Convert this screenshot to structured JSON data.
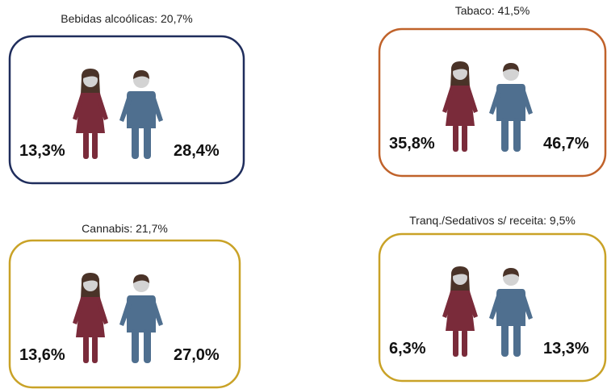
{
  "panels": [
    {
      "title": "Bebidas alcoólicas: 20,7%",
      "female": "13,3%",
      "male": "28,4%",
      "color": "#1f2d5c"
    },
    {
      "title": "Tabaco: 41,5%",
      "female": "35,8%",
      "male": "46,7%",
      "color": "#c0622a"
    },
    {
      "title": "Cannabis: 21,7%",
      "female": "13,6%",
      "male": "27,0%",
      "color": "#c9a227"
    },
    {
      "title": "Tranq./Sedativos s/ receita: 9,5%",
      "female": "6,3%",
      "male": "13,3%",
      "color": "#c9a227"
    }
  ]
}
